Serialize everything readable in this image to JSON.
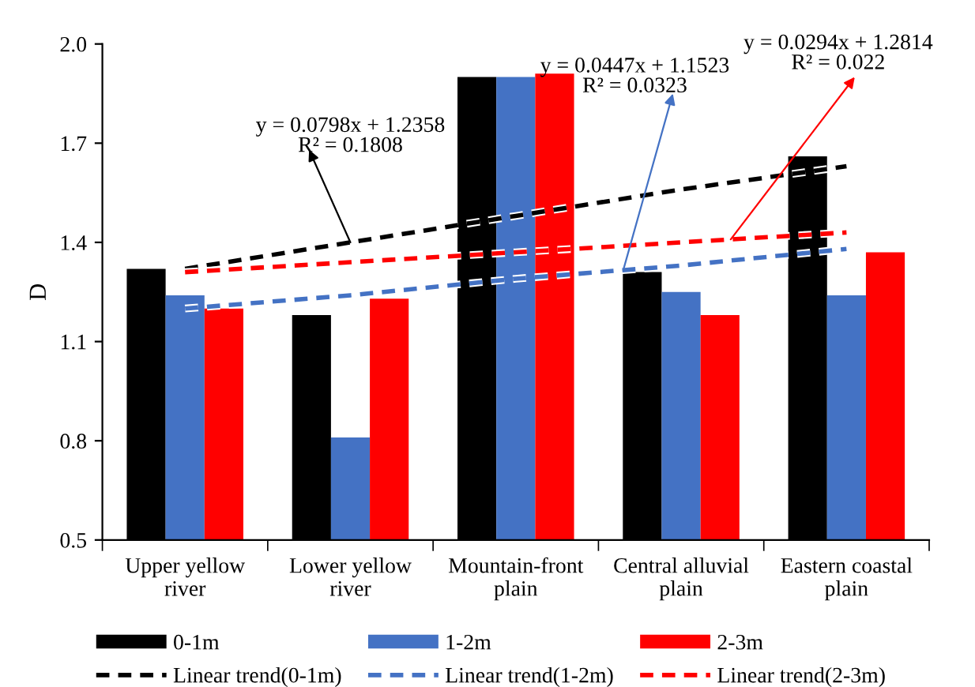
{
  "chart_data": {
    "type": "bar",
    "ylabel": "D",
    "categories": [
      "Upper yellow\nriver",
      "Lower yellow\nriver",
      "Mountain-front\nplain",
      "Central alluvial\nplain",
      "Eastern coastal\nplain"
    ],
    "series": [
      {
        "name": "0-1m",
        "color": "#000000",
        "values": [
          1.32,
          1.18,
          1.9,
          1.31,
          1.66
        ]
      },
      {
        "name": "1-2m",
        "color": "#4472c4",
        "values": [
          1.24,
          0.81,
          1.9,
          1.25,
          1.24
        ]
      },
      {
        "name": "2-3m",
        "color": "#ff0000",
        "values": [
          1.2,
          1.23,
          1.91,
          1.18,
          1.37
        ]
      },
      {
        "name": "Linear trend(0-1m)",
        "type": "line",
        "line_style": "dashed",
        "color": "#000000",
        "values": [
          1.32,
          1.4,
          1.48,
          1.56,
          1.63
        ]
      },
      {
        "name": "Linear trend(1-2m)",
        "type": "line",
        "line_style": "dashed",
        "color": "#4472c4",
        "values": [
          1.2,
          1.24,
          1.29,
          1.33,
          1.38
        ]
      },
      {
        "name": "Linear trend(2-3m)",
        "type": "line",
        "line_style": "dashed",
        "color": "#ff0000",
        "values": [
          1.31,
          1.34,
          1.37,
          1.4,
          1.43
        ]
      }
    ],
    "annotations": [
      "y = 0.0798x + 1.2358\nR² = 0.1808",
      "y = 0.0447x + 1.1523\nR² = 0.0323",
      "y = 0.0294x + 1.2814\nR² = 0.022"
    ],
    "ylim": [
      0.5,
      2.0
    ],
    "yticks": [
      {
        "value": 0.5,
        "label": "0.5"
      },
      {
        "value": 0.8,
        "label": "0.8"
      },
      {
        "value": 1.1,
        "label": "1.1"
      },
      {
        "value": 1.4,
        "label": "1.4"
      },
      {
        "value": 1.7,
        "label": "1.7"
      },
      {
        "value": 2.0,
        "label": "2.0"
      }
    ],
    "grid": false,
    "legend": "bottom"
  }
}
